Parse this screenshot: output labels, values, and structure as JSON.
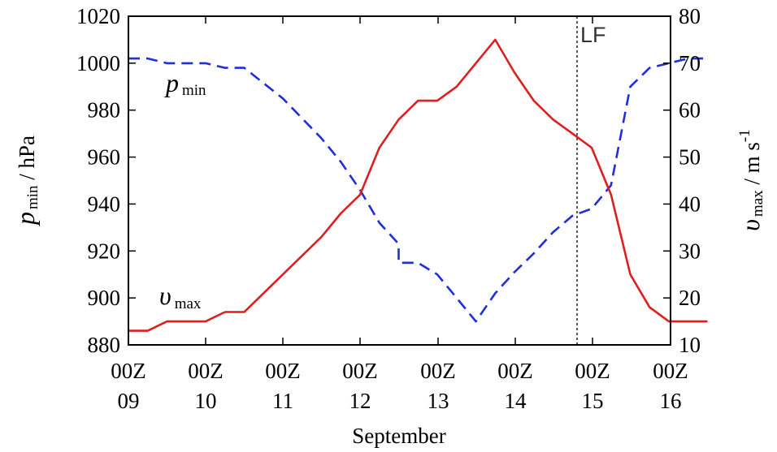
{
  "chart_data": {
    "type": "line",
    "x_ticks": [
      {
        "x": 0,
        "top": "00Z",
        "bottom": "09"
      },
      {
        "x": 1,
        "top": "00Z",
        "bottom": "10"
      },
      {
        "x": 2,
        "top": "00Z",
        "bottom": "11"
      },
      {
        "x": 3,
        "top": "00Z",
        "bottom": "12"
      },
      {
        "x": 4,
        "top": "00Z",
        "bottom": "13"
      },
      {
        "x": 5,
        "top": "00Z",
        "bottom": "14"
      },
      {
        "x": 6,
        "top": "00Z",
        "bottom": "15"
      },
      {
        "x": 7,
        "top": "00Z",
        "bottom": "16"
      }
    ],
    "xlabel": "September",
    "xlim": [
      0,
      7
    ],
    "y_left": {
      "label_symbol": "p",
      "label_sub": "min",
      "label_unit": " / hPa",
      "lim": [
        880,
        1020
      ],
      "ticks": [
        880,
        900,
        920,
        940,
        960,
        980,
        1000,
        1020
      ]
    },
    "y_right": {
      "label_symbol": "υ",
      "label_sub": "max",
      "label_unit": " / m s",
      "label_sup": "-1",
      "lim": [
        10,
        80
      ],
      "ticks": [
        10,
        20,
        30,
        40,
        50,
        60,
        70,
        80
      ]
    },
    "series": [
      {
        "name_symbol": "p",
        "name_sub": "min",
        "axis": "left",
        "color": "#1f2fd6",
        "dash": "dashed",
        "points": [
          [
            0,
            1002
          ],
          [
            0.25,
            1002
          ],
          [
            0.5,
            1000
          ],
          [
            0.75,
            1000
          ],
          [
            1,
            1000
          ],
          [
            1.25,
            998
          ],
          [
            1.5,
            998
          ],
          [
            2,
            985
          ],
          [
            2.5,
            968
          ],
          [
            2.75,
            958
          ],
          [
            3,
            946
          ],
          [
            3.25,
            932
          ],
          [
            3.5,
            923
          ],
          [
            3.5,
            915
          ],
          [
            3.75,
            915
          ],
          [
            4,
            910
          ],
          [
            4.25,
            900
          ],
          [
            4.5,
            890
          ],
          [
            4.75,
            902
          ],
          [
            5,
            911
          ],
          [
            5.25,
            919
          ],
          [
            5.5,
            928
          ],
          [
            5.75,
            935
          ],
          [
            6,
            938
          ],
          [
            6.25,
            948
          ],
          [
            6.5,
            990
          ],
          [
            6.75,
            998
          ],
          [
            7,
            1000
          ],
          [
            7.25,
            1002
          ],
          [
            7.5,
            1002
          ]
        ]
      },
      {
        "name_symbol": "υ",
        "name_sub": "max",
        "axis": "right",
        "color": "#dd1f1f",
        "dash": "solid",
        "points": [
          [
            0,
            13
          ],
          [
            0.25,
            13
          ],
          [
            0.5,
            15
          ],
          [
            0.75,
            15
          ],
          [
            1,
            15
          ],
          [
            1.25,
            17
          ],
          [
            1.5,
            17
          ],
          [
            2,
            25
          ],
          [
            2.5,
            33
          ],
          [
            2.75,
            38
          ],
          [
            3,
            42
          ],
          [
            3.25,
            52
          ],
          [
            3.5,
            58
          ],
          [
            3.75,
            62
          ],
          [
            4,
            62
          ],
          [
            4.25,
            65
          ],
          [
            4.5,
            70
          ],
          [
            4.75,
            75
          ],
          [
            5,
            68
          ],
          [
            5.25,
            62
          ],
          [
            5.5,
            58
          ],
          [
            5.75,
            55
          ],
          [
            6,
            52
          ],
          [
            6.25,
            42
          ],
          [
            6.5,
            25
          ],
          [
            6.75,
            18
          ],
          [
            7,
            15
          ],
          [
            7.25,
            15
          ],
          [
            7.5,
            15
          ]
        ]
      }
    ],
    "landfall": {
      "x": 5.85,
      "label": "LF"
    },
    "grid": false
  }
}
